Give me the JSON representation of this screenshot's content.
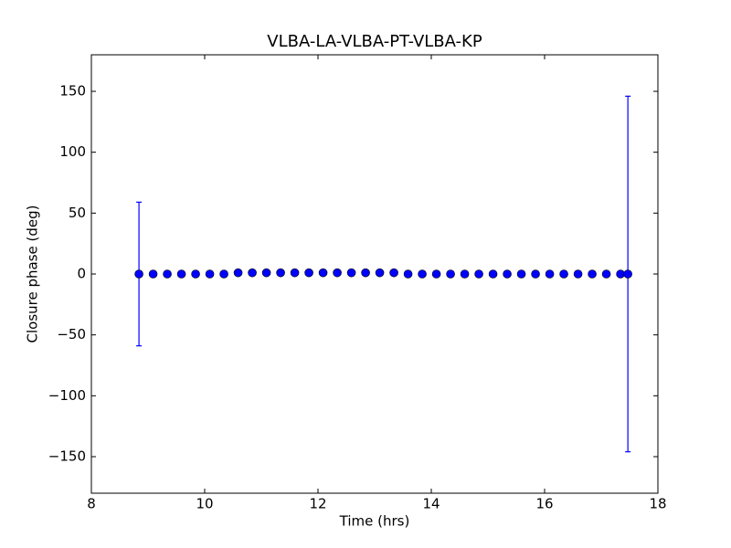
{
  "chart_data": {
    "type": "scatter",
    "title": "VLBA-LA-VLBA-PT-VLBA-KP",
    "x_label": "Time (hrs)",
    "y_label": "Closure phase (deg)",
    "series": [
      {
        "color": "#0000ff",
        "x": [
          8.84,
          9.09,
          9.34,
          9.59,
          9.84,
          10.09,
          10.34,
          10.59,
          10.84,
          11.09,
          11.34,
          11.59,
          11.84,
          12.09,
          12.34,
          12.59,
          12.84,
          13.09,
          13.34,
          13.59,
          13.84,
          14.09,
          14.34,
          14.59,
          14.84,
          15.09,
          15.34,
          15.59,
          15.84,
          16.09,
          16.34,
          16.59,
          16.84,
          17.09,
          17.34,
          17.47
        ],
        "values": [
          0,
          0,
          0,
          0,
          0,
          0,
          0,
          1,
          1,
          1,
          1,
          1,
          1,
          1,
          1,
          1,
          1,
          1,
          1,
          0,
          0,
          0,
          0,
          0,
          0,
          0,
          0,
          0,
          0,
          0,
          0,
          0,
          0,
          0,
          0,
          0
        ],
        "errors": [
          59,
          0,
          0,
          0,
          0,
          0,
          0,
          0,
          0,
          0,
          0,
          0,
          0,
          0,
          0,
          0,
          0,
          0,
          0,
          0,
          0,
          0,
          0,
          0,
          0,
          0,
          0,
          0,
          0,
          0,
          0,
          0,
          0,
          0,
          0,
          146
        ]
      }
    ],
    "xlim": [
      8,
      18
    ],
    "xticks": [
      8,
      10,
      12,
      14,
      16,
      18
    ],
    "ylim": [
      -180,
      180
    ],
    "yticks": [
      {
        "value": -150,
        "label": "−150"
      },
      {
        "value": -100,
        "label": "−100"
      },
      {
        "value": -50,
        "label": "−50"
      },
      0,
      50,
      100,
      150
    ],
    "grid": false
  }
}
